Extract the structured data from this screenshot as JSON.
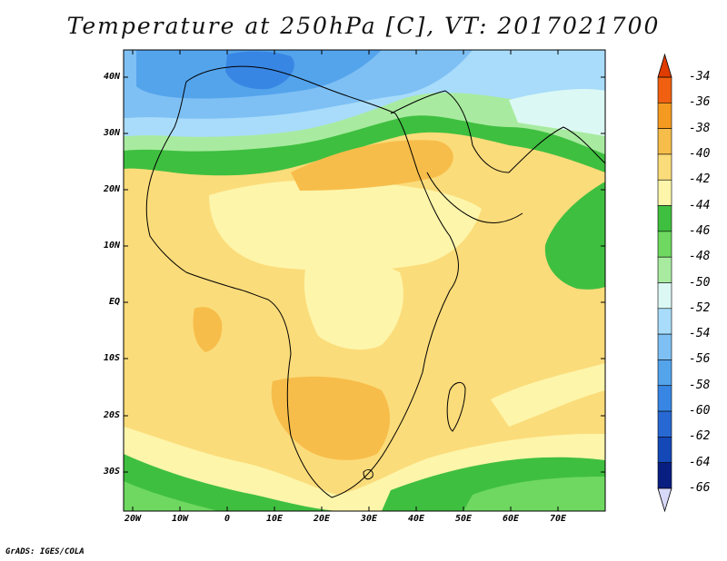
{
  "title": "Temperature at 250hPa [C], VT: 2017021700",
  "credit": "GrADS: IGES/COLA",
  "lat_labels": [
    "40N",
    "30N",
    "20N",
    "10N",
    "EQ",
    "10S",
    "20S",
    "30S"
  ],
  "lon_labels": [
    "20W",
    "10W",
    "0",
    "10E",
    "20E",
    "30E",
    "40E",
    "50E",
    "60E",
    "70E"
  ],
  "colorbar": {
    "labels": [
      "-34",
      "-36",
      "-38",
      "-40",
      "-42",
      "-44",
      "-46",
      "-48",
      "-50",
      "-52",
      "-54",
      "-56",
      "-58",
      "-60",
      "-62",
      "-64",
      "-66"
    ],
    "colors": [
      "#e03c00",
      "#f06010",
      "#f59a20",
      "#f7bd4a",
      "#fbdc7a",
      "#fdf5aa",
      "#3fbf40",
      "#6ed860",
      "#a8eba0",
      "#dcf8f4",
      "#a8dcfa",
      "#7ec0f4",
      "#54a4ec",
      "#3886e4",
      "#2868d2",
      "#1448b6",
      "#081e80"
    ]
  }
}
